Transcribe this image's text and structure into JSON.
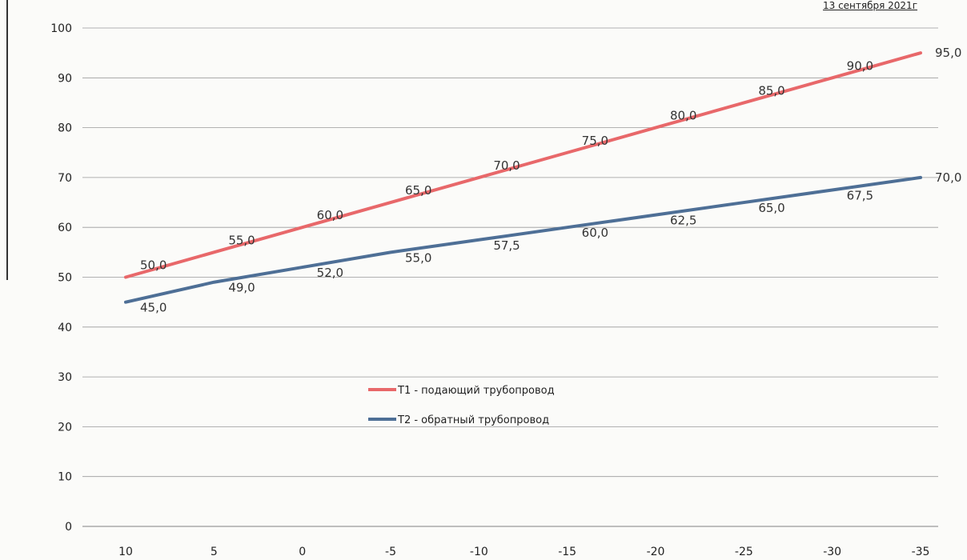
{
  "header": {
    "date_text": "13 сентября 2021г"
  },
  "colors": {
    "t1": "#e8686a",
    "t2": "#4e6f96",
    "grid": "#9a9a9a"
  },
  "chart_data": {
    "type": "line",
    "title": "",
    "xlabel": "",
    "ylabel": "",
    "ylim": [
      0,
      100
    ],
    "y_ticks": [
      "0",
      "10",
      "20",
      "30",
      "40",
      "50",
      "60",
      "70",
      "80",
      "90",
      "100"
    ],
    "x": [
      10,
      5,
      0,
      -5,
      -10,
      -15,
      -20,
      -25,
      -30,
      -35
    ],
    "x_tick_labels": [
      "10",
      "5",
      "0",
      "-5",
      "-10",
      "-15",
      "-20",
      "-25",
      "-30",
      "-35"
    ],
    "grid": true,
    "legend_position": "center",
    "series": [
      {
        "name": "Т1 - подающий трубопровод",
        "values": [
          50.0,
          55.0,
          60.0,
          65.0,
          70.0,
          75.0,
          80.0,
          85.0,
          90.0,
          95.0
        ],
        "labels": [
          "50,0",
          "55,0",
          "60,0",
          "65,0",
          "70,0",
          "75,0",
          "80,0",
          "85,0",
          "90,0",
          "95,0"
        ]
      },
      {
        "name": "Т2 - обратный трубопровод",
        "values": [
          45.0,
          49.0,
          52.0,
          55.0,
          57.5,
          60.0,
          62.5,
          65.0,
          67.5,
          70.0
        ],
        "labels": [
          "45,0",
          "49,0",
          "52,0",
          "55,0",
          "57,5",
          "60,0",
          "62,5",
          "65,0",
          "67,5",
          "70,0"
        ]
      }
    ]
  }
}
